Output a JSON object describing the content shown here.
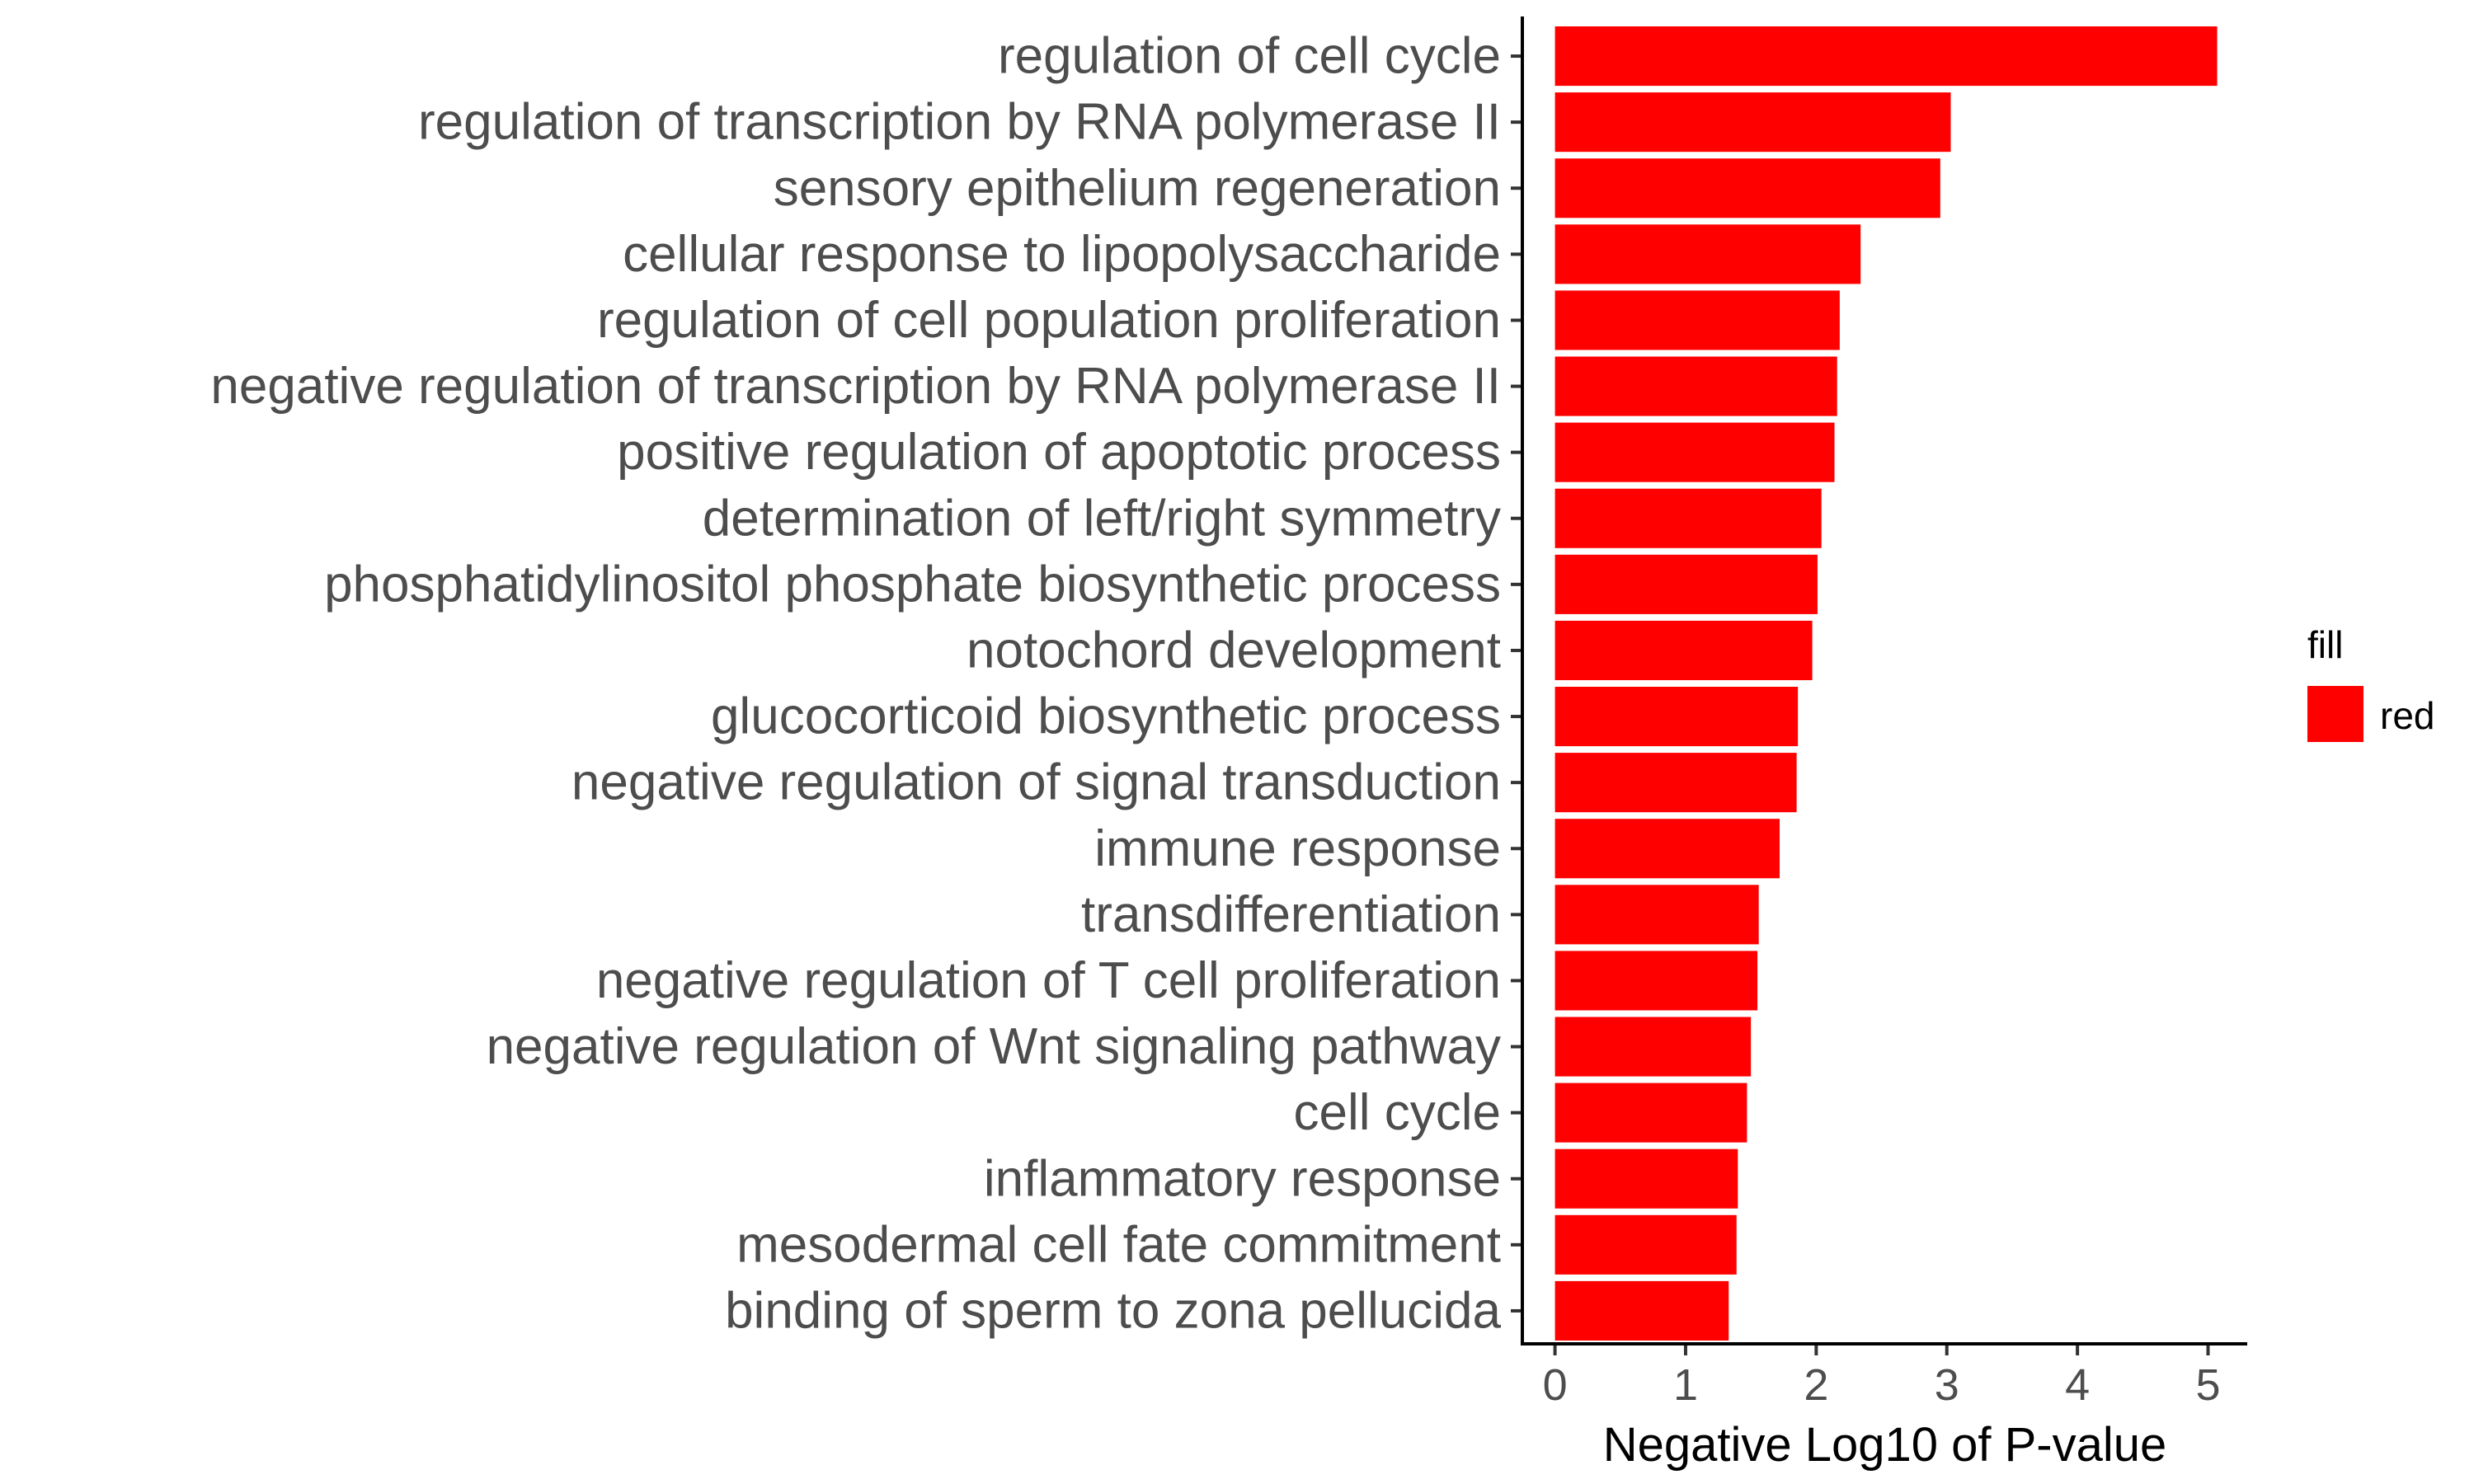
{
  "chart_data": {
    "type": "bar",
    "orientation": "horizontal",
    "categories": [
      "regulation of cell cycle",
      "regulation of transcription by RNA polymerase II",
      "sensory epithelium regeneration",
      "cellular response to lipopolysaccharide",
      "regulation of cell population proliferation",
      "negative regulation of transcription by RNA polymerase II",
      "positive regulation of apoptotic process",
      "determination of left/right symmetry",
      "phosphatidylinositol phosphate biosynthetic process",
      "notochord development",
      "glucocorticoid biosynthetic process",
      "negative regulation of signal transduction",
      "immune response",
      "transdifferentiation",
      "negative regulation of T cell proliferation",
      "negative regulation of Wnt signaling pathway",
      "cell cycle",
      "inflammatory response",
      "mesodermal cell fate commitment",
      "binding of sperm to zona pellucida"
    ],
    "values": [
      5.07,
      3.03,
      2.95,
      2.34,
      2.18,
      2.16,
      2.14,
      2.04,
      2.01,
      1.97,
      1.86,
      1.85,
      1.72,
      1.56,
      1.55,
      1.5,
      1.47,
      1.4,
      1.39,
      1.33
    ],
    "xlabel": "Negative Log10 of P-value",
    "ylabel": "",
    "xlim": [
      -0.25,
      5.3
    ],
    "xticks": [
      0,
      1,
      2,
      3,
      4,
      5
    ],
    "grid": false,
    "bar_color": "#ff0000",
    "legend": {
      "title": "fill",
      "position": "right",
      "entries": [
        {
          "label": "red",
          "color": "#ff0000"
        }
      ]
    }
  }
}
